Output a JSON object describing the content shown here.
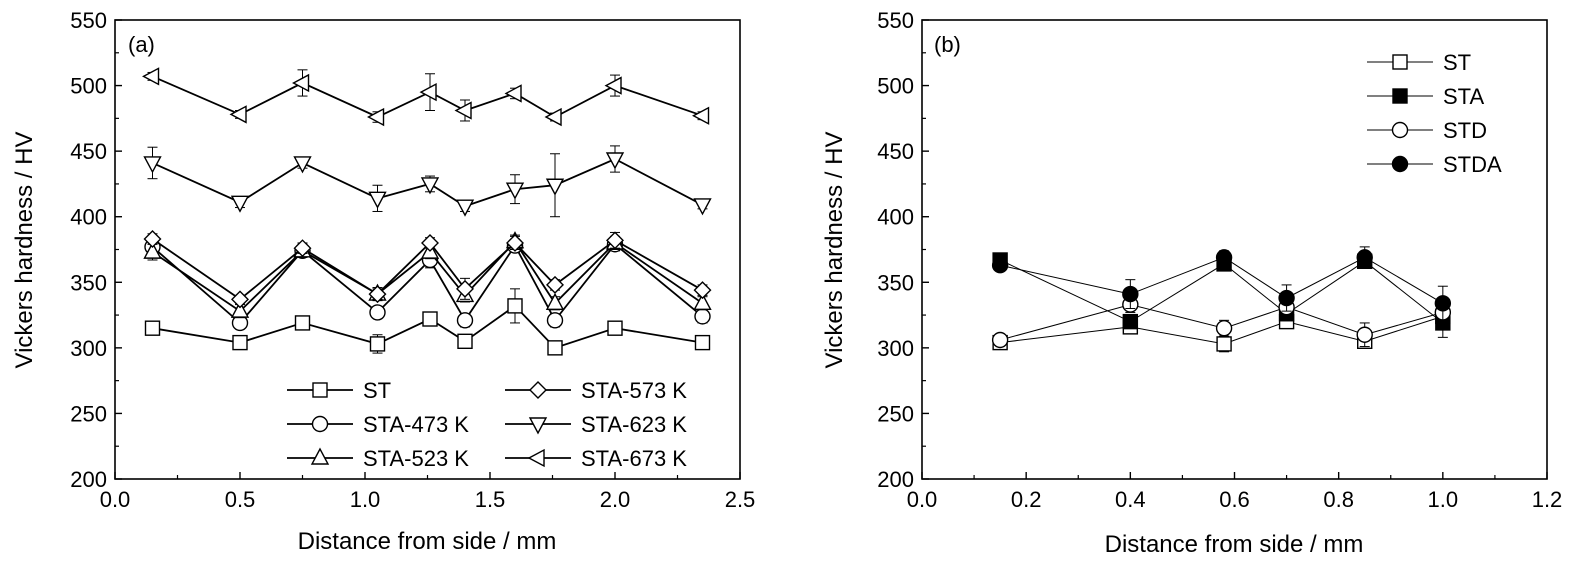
{
  "chart_data": [
    {
      "type": "line",
      "panel_label": "(a)",
      "xlabel": "Distance from side / mm",
      "ylabel": "Vickers hardness / HV",
      "xlim": [
        0.0,
        2.5
      ],
      "ylim": [
        200,
        550
      ],
      "xticks": [
        "0.0",
        "0.5",
        "1.0",
        "1.5",
        "2.0",
        "2.5"
      ],
      "yticks": [
        "200",
        "250",
        "300",
        "350",
        "400",
        "450",
        "500",
        "550"
      ],
      "legend_position": "bottom-right",
      "legend_columns": 2,
      "x": [
        0.15,
        0.5,
        0.75,
        1.05,
        1.26,
        1.4,
        1.6,
        1.76,
        2.0,
        2.35
      ],
      "series": [
        {
          "name": "ST",
          "marker": "square-open",
          "values": [
            315,
            304,
            319,
            303,
            322,
            305,
            332,
            300,
            315,
            304
          ],
          "errors": [
            5,
            3,
            3,
            7,
            3,
            4,
            13,
            3,
            3,
            3
          ]
        },
        {
          "name": "STA-473 K",
          "marker": "circle-open",
          "values": [
            377,
            319,
            374,
            327,
            367,
            321,
            378,
            321,
            379,
            324
          ],
          "errors": [
            6,
            4,
            4,
            4,
            6,
            5,
            5,
            5,
            5,
            5
          ]
        },
        {
          "name": "STA-523 K",
          "marker": "triangle-up-open",
          "values": [
            373,
            328,
            374,
            341,
            373,
            340,
            381,
            334,
            380,
            334
          ],
          "errors": [
            6,
            5,
            5,
            5,
            5,
            5,
            5,
            5,
            5,
            5
          ]
        },
        {
          "name": "STA-573 K",
          "marker": "diamond-open",
          "values": [
            383,
            337,
            376,
            341,
            380,
            345,
            380,
            348,
            382,
            344
          ],
          "errors": [
            4,
            3,
            4,
            4,
            4,
            8,
            5,
            4,
            6,
            4
          ]
        },
        {
          "name": "STA-623 K",
          "marker": "triangle-down-open",
          "values": [
            441,
            411,
            441,
            414,
            425,
            408,
            421,
            424,
            444,
            409
          ],
          "errors": [
            12,
            4,
            4,
            10,
            6,
            4,
            11,
            24,
            10,
            3
          ]
        },
        {
          "name": "STA-673 K",
          "marker": "triangle-left-open",
          "values": [
            507,
            478,
            502,
            476,
            495,
            481,
            494,
            476,
            500,
            477
          ],
          "errors": [
            3,
            3,
            10,
            4,
            14,
            8,
            4,
            3,
            8,
            3
          ]
        }
      ]
    },
    {
      "type": "line",
      "panel_label": "(b)",
      "xlabel": "Distance from side / mm",
      "ylabel": "Vickers hardness / HV",
      "xlim": [
        0.0,
        1.2
      ],
      "ylim": [
        200,
        550
      ],
      "xticks": [
        "0.0",
        "0.2",
        "0.4",
        "0.6",
        "0.8",
        "1.0",
        "1.2"
      ],
      "yticks": [
        "200",
        "250",
        "300",
        "350",
        "400",
        "450",
        "500",
        "550"
      ],
      "legend_position": "top-right",
      "legend_columns": 1,
      "x": [
        0.15,
        0.4,
        0.58,
        0.7,
        0.85,
        1.0
      ],
      "series": [
        {
          "name": "ST",
          "marker": "square-open",
          "values": [
            304,
            316,
            303,
            320,
            305,
            324
          ],
          "errors": [
            3,
            5,
            6,
            4,
            4,
            3
          ]
        },
        {
          "name": "STA",
          "marker": "square-filled",
          "values": [
            367,
            320,
            364,
            326,
            366,
            319
          ],
          "errors": [
            3,
            5,
            5,
            5,
            5,
            11
          ]
        },
        {
          "name": "STD",
          "marker": "circle-open",
          "values": [
            306,
            333,
            315,
            331,
            310,
            327
          ],
          "errors": [
            3,
            6,
            6,
            5,
            9,
            5
          ]
        },
        {
          "name": "STDA",
          "marker": "circle-filled",
          "values": [
            363,
            341,
            369,
            338,
            369,
            334
          ],
          "errors": [
            3,
            11,
            5,
            10,
            8,
            13
          ]
        }
      ]
    }
  ]
}
